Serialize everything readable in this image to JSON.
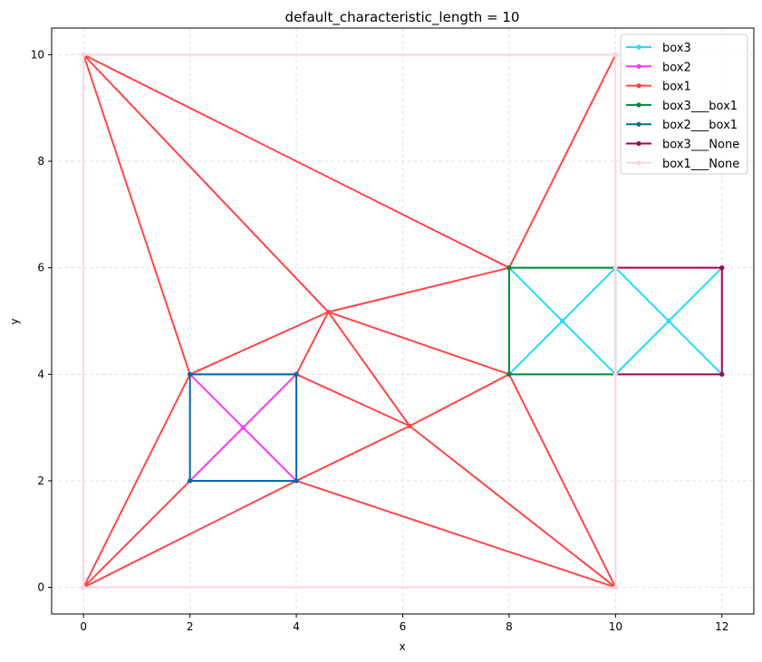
{
  "chart_data": {
    "type": "line",
    "title": "default_characteristic_length = 10",
    "xlabel": "x",
    "ylabel": "y",
    "xlim": [
      -0.6,
      12.6
    ],
    "ylim": [
      -0.5,
      10.5
    ],
    "xticks": [
      0,
      2,
      4,
      6,
      8,
      10,
      12
    ],
    "yticks": [
      0,
      2,
      4,
      6,
      8,
      10
    ],
    "grid": true,
    "legend_position": "top-right",
    "series": [
      {
        "name": "box3",
        "color": "#22ddff",
        "segments": [
          [
            [
              8,
              6
            ],
            [
              9,
              5
            ]
          ],
          [
            [
              9,
              5
            ],
            [
              10,
              4
            ]
          ],
          [
            [
              8,
              4
            ],
            [
              9,
              5
            ]
          ],
          [
            [
              9,
              5
            ],
            [
              10,
              6
            ]
          ],
          [
            [
              10,
              6
            ],
            [
              10,
              4
            ]
          ],
          [
            [
              10,
              6
            ],
            [
              11,
              5
            ]
          ],
          [
            [
              11,
              5
            ],
            [
              12,
              4
            ]
          ],
          [
            [
              10,
              4
            ],
            [
              11,
              5
            ]
          ],
          [
            [
              11,
              5
            ],
            [
              12,
              6
            ]
          ]
        ]
      },
      {
        "name": "box2",
        "color": "#f53cf5",
        "segments": [
          [
            [
              2,
              2
            ],
            [
              3,
              3
            ]
          ],
          [
            [
              3,
              3
            ],
            [
              4,
              4
            ]
          ],
          [
            [
              2,
              4
            ],
            [
              3,
              3
            ]
          ],
          [
            [
              3,
              3
            ],
            [
              4,
              2
            ]
          ]
        ]
      },
      {
        "name": "box1",
        "color": "#ff4646",
        "segments": [
          [
            [
              0,
              10
            ],
            [
              2,
              4
            ]
          ],
          [
            [
              0,
              10
            ],
            [
              4.6,
              5.17
            ]
          ],
          [
            [
              0,
              10
            ],
            [
              8,
              6
            ]
          ],
          [
            [
              10,
              10
            ],
            [
              8,
              6
            ]
          ],
          [
            [
              8,
              6
            ],
            [
              4.6,
              5.17
            ]
          ],
          [
            [
              4.6,
              5.17
            ],
            [
              2,
              4
            ]
          ],
          [
            [
              4.6,
              5.17
            ],
            [
              4,
              4
            ]
          ],
          [
            [
              4.6,
              5.17
            ],
            [
              8,
              4
            ]
          ],
          [
            [
              4.6,
              5.17
            ],
            [
              6.13,
              3.03
            ]
          ],
          [
            [
              4,
              4
            ],
            [
              6.13,
              3.03
            ]
          ],
          [
            [
              4,
              2
            ],
            [
              6.13,
              3.03
            ]
          ],
          [
            [
              6.13,
              3.03
            ],
            [
              8,
              4
            ]
          ],
          [
            [
              6.13,
              3.03
            ],
            [
              10,
              0
            ]
          ],
          [
            [
              8,
              4
            ],
            [
              10,
              0
            ]
          ],
          [
            [
              4,
              2
            ],
            [
              10,
              0
            ]
          ],
          [
            [
              0,
              0
            ],
            [
              4,
              2
            ]
          ],
          [
            [
              0,
              0
            ],
            [
              2,
              2
            ]
          ],
          [
            [
              0,
              0
            ],
            [
              2,
              4
            ]
          ],
          [
            [
              2,
              4
            ],
            [
              4,
              4
            ]
          ]
        ]
      },
      {
        "name": "box3___box1",
        "color": "#00853e",
        "segments": [
          [
            [
              8,
              4
            ],
            [
              8,
              6
            ]
          ],
          [
            [
              8,
              6
            ],
            [
              10,
              6
            ]
          ],
          [
            [
              8,
              4
            ],
            [
              10,
              4
            ]
          ]
        ]
      },
      {
        "name": "box2___box1",
        "color": "#0068a8",
        "segments": [
          [
            [
              2,
              2
            ],
            [
              4,
              2
            ]
          ],
          [
            [
              4,
              2
            ],
            [
              4,
              4
            ]
          ],
          [
            [
              4,
              4
            ],
            [
              2,
              4
            ]
          ],
          [
            [
              2,
              4
            ],
            [
              2,
              2
            ]
          ]
        ]
      },
      {
        "name": "box3___None",
        "color": "#a0005a",
        "segments": [
          [
            [
              10,
              6
            ],
            [
              12,
              6
            ]
          ],
          [
            [
              12,
              6
            ],
            [
              12,
              4
            ]
          ],
          [
            [
              12,
              4
            ],
            [
              10,
              4
            ]
          ]
        ]
      },
      {
        "name": "box1___None",
        "color": "#ffd2dc",
        "segments": [
          [
            [
              0,
              0
            ],
            [
              10,
              0
            ]
          ],
          [
            [
              10,
              0
            ],
            [
              10,
              4
            ]
          ],
          [
            [
              10,
              4
            ],
            [
              10,
              6
            ]
          ],
          [
            [
              10,
              6
            ],
            [
              10,
              10
            ]
          ],
          [
            [
              10,
              10
            ],
            [
              0,
              10
            ]
          ],
          [
            [
              0,
              10
            ],
            [
              0,
              0
            ]
          ]
        ]
      }
    ]
  }
}
